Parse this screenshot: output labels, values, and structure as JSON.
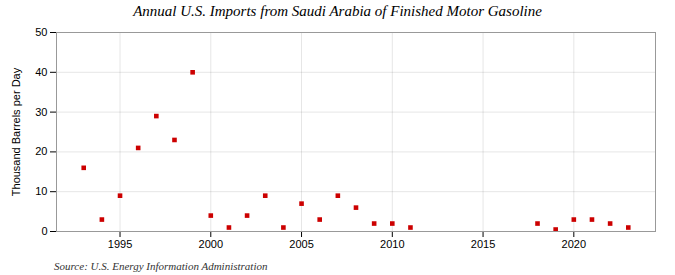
{
  "chart_data": {
    "type": "scatter",
    "title": "Annual U.S. Imports from Saudi Arabia of Finished Motor Gasoline",
    "ylabel": "Thousand Barrels per Day",
    "source": "Source: U.S. Energy Information Administration",
    "x": [
      1993,
      1994,
      1995,
      1996,
      1997,
      1998,
      1999,
      2000,
      2001,
      2002,
      2003,
      2004,
      2005,
      2006,
      2007,
      2008,
      2009,
      2010,
      2011,
      2018,
      2019,
      2020,
      2021,
      2022,
      2023
    ],
    "values": [
      16,
      3,
      9,
      21,
      29,
      23,
      40,
      4,
      1,
      4,
      9,
      1,
      7,
      3,
      9,
      6,
      2,
      2,
      1,
      2,
      0.5,
      3,
      3,
      2,
      1
    ],
    "color": "#cc0000",
    "marker": "square",
    "xlim": [
      1991.5,
      2024.5
    ],
    "xticks": [
      1995,
      2000,
      2005,
      2010,
      2015,
      2020
    ],
    "ylim": [
      0,
      50
    ],
    "yticks": [
      0,
      10,
      20,
      30,
      40,
      50
    ],
    "grid": true
  }
}
